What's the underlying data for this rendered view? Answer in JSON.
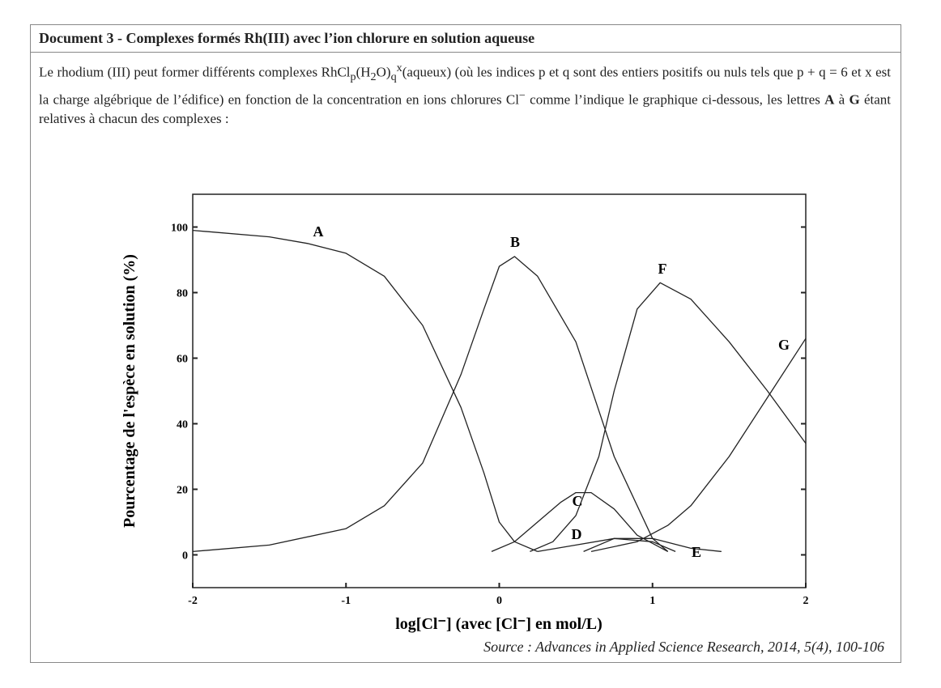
{
  "header": {
    "title": "Document 3 - Complexes formés Rh(III) avec l’ion chlorure en solution aqueuse"
  },
  "paragraph": [
    "Le rhodium (III) peut former différents complexes RhCl",
    "p",
    "(H",
    "2",
    "O)",
    "q",
    "x",
    "(aqueux) (où les indices p et q sont des entiers positifs ou nuls tels que p + q = 6 et x est la charge algébrique de l’édifice) en fonction de la concentration en ions chlorures Cl",
    "−",
    " comme l’indique le graphique ci-dessous, les lettres ",
    "A",
    " à ",
    "G",
    " étant relatives à chacun des complexes :"
  ],
  "chart_data": {
    "type": "line",
    "x_label": "log[Cl⁻] (avec [Cl⁻] en mol/L)",
    "y_label": "Pourcentage de l'espèce en solution (%)",
    "xlim": [
      -2,
      2
    ],
    "ylim": [
      -10,
      110
    ],
    "xticks": [
      -2,
      -1,
      0,
      1,
      2
    ],
    "yticks": [
      0,
      20,
      40,
      60,
      80,
      100
    ],
    "color": "#222222",
    "series": [
      {
        "name": "A",
        "x": [
          -2,
          -1.5,
          -1.25,
          -1,
          -0.75,
          -0.5,
          -0.25,
          -0.1,
          0,
          0.1,
          0.25
        ],
        "values": [
          99,
          97,
          95,
          92,
          85,
          70,
          45,
          25,
          10,
          4,
          1
        ]
      },
      {
        "name": "B",
        "x": [
          -2,
          -1.5,
          -1,
          -0.75,
          -0.5,
          -0.25,
          -0.1,
          0,
          0.1,
          0.25,
          0.5,
          0.75,
          1,
          1.1
        ],
        "values": [
          1,
          3,
          8,
          15,
          28,
          55,
          75,
          88,
          91,
          85,
          65,
          30,
          5,
          1
        ]
      },
      {
        "name": "C",
        "x": [
          -0.05,
          0.1,
          0.25,
          0.4,
          0.5,
          0.6,
          0.75,
          0.9,
          1.1
        ],
        "values": [
          1,
          4,
          10,
          16,
          19,
          19,
          14,
          6,
          1
        ]
      },
      {
        "name": "D",
        "x": [
          0.25,
          0.5,
          0.75,
          1,
          1.15
        ],
        "values": [
          1,
          3,
          5,
          4,
          1
        ]
      },
      {
        "name": "E",
        "x": [
          0.55,
          0.75,
          1,
          1.25,
          1.45
        ],
        "values": [
          1,
          5,
          5,
          2,
          1
        ]
      },
      {
        "name": "F",
        "x": [
          0.2,
          0.35,
          0.5,
          0.65,
          0.75,
          0.9,
          1.05,
          1.25,
          1.5,
          1.75,
          2
        ],
        "values": [
          1,
          4,
          12,
          30,
          50,
          75,
          83,
          78,
          65,
          50,
          34
        ]
      },
      {
        "name": "G",
        "x": [
          0.6,
          0.9,
          1.1,
          1.25,
          1.5,
          1.75,
          2
        ],
        "values": [
          1,
          4,
          9,
          15,
          30,
          48,
          66
        ]
      }
    ]
  },
  "source": "Source : Advances in Applied Science Research, 2014, 5(4), 100-106"
}
